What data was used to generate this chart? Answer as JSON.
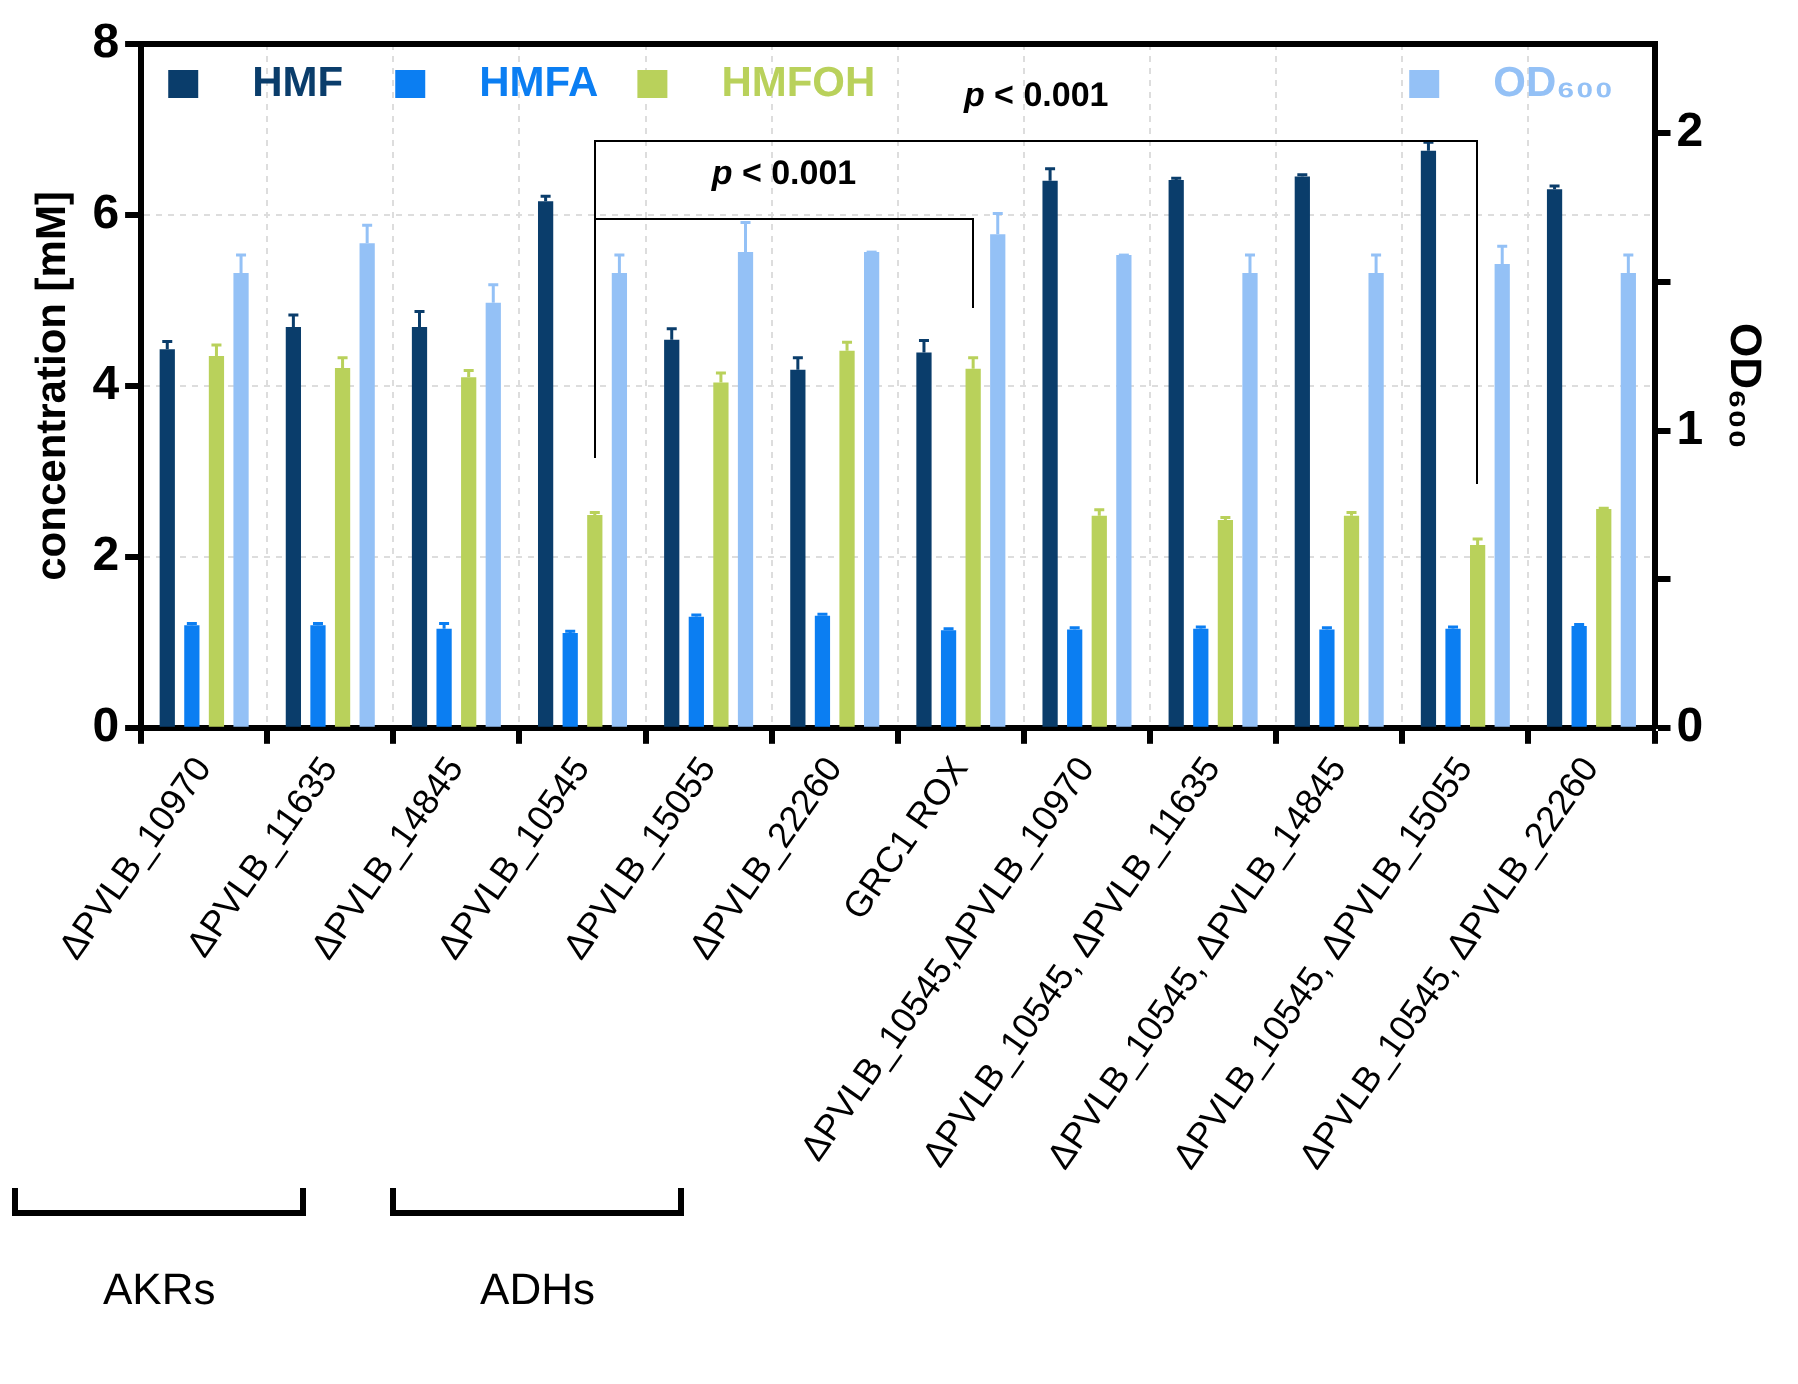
{
  "chart_data": {
    "type": "bar",
    "ylabel": "concentration [mM]",
    "y2label": "OD₆₀₀",
    "categories": [
      "ΔPVLB_10970",
      "ΔPVLB_11635",
      "ΔPVLB_14845",
      "ΔPVLB_10545",
      "ΔPVLB_15055",
      "ΔPVLB_22260",
      "GRC1 ROX",
      "ΔPVLB_10545,ΔPVLB_10970",
      "ΔPVLB_10545, ΔPVLB_11635",
      "ΔPVLB_10545, ΔPVLB_14845",
      "ΔPVLB_10545, ΔPVLB_15055",
      "ΔPVLB_10545, ΔPVLB_22260"
    ],
    "series": [
      {
        "name": "HMF",
        "color": "#0a3d6b",
        "values": [
          4.43,
          4.69,
          4.69,
          6.16,
          4.54,
          4.19,
          4.39,
          6.4,
          6.41,
          6.45,
          6.75,
          6.3
        ],
        "errors": [
          0.09,
          0.14,
          0.18,
          0.06,
          0.13,
          0.14,
          0.14,
          0.14,
          0.02,
          0.02,
          0.1,
          0.04
        ]
      },
      {
        "name": "HMFA",
        "color": "#0b7ef2",
        "values": [
          1.2,
          1.2,
          1.16,
          1.11,
          1.3,
          1.31,
          1.14,
          1.15,
          1.16,
          1.15,
          1.16,
          1.19
        ],
        "errors": [
          0.02,
          0.02,
          0.06,
          0.02,
          0.02,
          0.02,
          0.02,
          0.02,
          0.02,
          0.02,
          0.02,
          0.02
        ]
      },
      {
        "name": "HMFOH",
        "color": "#b9d15b",
        "values": [
          4.35,
          4.21,
          4.1,
          2.49,
          4.04,
          4.41,
          4.2,
          2.48,
          2.43,
          2.48,
          2.14,
          2.56
        ],
        "errors": [
          0.13,
          0.12,
          0.08,
          0.03,
          0.11,
          0.1,
          0.13,
          0.07,
          0.03,
          0.04,
          0.07,
          0.01
        ]
      },
      {
        "name": "OD₆₀₀",
        "color": "#94c1f6",
        "axis": "y2",
        "values": [
          1.53,
          1.63,
          1.43,
          1.53,
          1.6,
          1.6,
          1.66,
          1.59,
          1.53,
          1.53,
          1.56,
          1.53
        ],
        "errors": [
          0.06,
          0.06,
          0.06,
          0.06,
          0.1,
          0,
          0.07,
          0,
          0.06,
          0.06,
          0.06,
          0.06
        ]
      }
    ],
    "ylim": [
      0,
      8
    ],
    "yticks": [
      0,
      2,
      4,
      6,
      8
    ],
    "y2lim": [
      0,
      2.3
    ],
    "y2ticks": [
      0,
      {
        "value": 0.5,
        "label": null
      },
      1,
      {
        "value": 1.5,
        "label": null
      },
      2
    ],
    "grid": true,
    "legend": "top",
    "annotations": [
      "p < 0.001",
      "p < 0.001",
      "AKRs",
      "ADHs"
    ]
  }
}
